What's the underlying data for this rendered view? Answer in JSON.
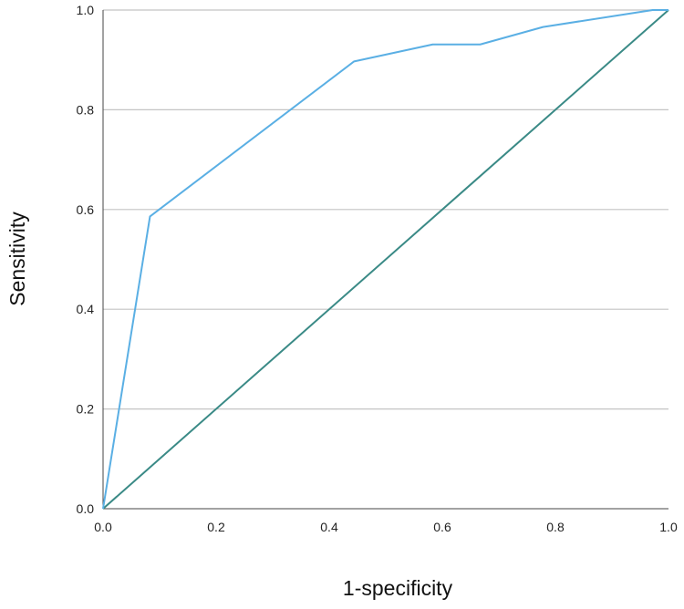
{
  "chart_data": {
    "type": "line",
    "title": "",
    "xlabel": "1-specificity",
    "ylabel": "Sensitivity",
    "xlim": [
      0.0,
      1.0
    ],
    "ylim": [
      0.0,
      1.0
    ],
    "x_ticks": [
      "0.0",
      "0.2",
      "0.4",
      "0.6",
      "0.8",
      "1.0"
    ],
    "y_ticks": [
      "0.0",
      "0.2",
      "0.4",
      "0.6",
      "0.8",
      "1.0"
    ],
    "grid": "horizontal",
    "legend": "none",
    "series": [
      {
        "color": "#5aafe4",
        "x": [
          0.0,
          0.083,
          0.444,
          0.583,
          0.667,
          0.778,
          0.972,
          1.0
        ],
        "y": [
          0.0,
          0.586,
          0.897,
          0.931,
          0.931,
          0.966,
          1.0,
          1.0
        ]
      },
      {
        "color": "#3a8a86",
        "x": [
          0.0,
          1.0
        ],
        "y": [
          0.0,
          1.0
        ]
      }
    ]
  }
}
